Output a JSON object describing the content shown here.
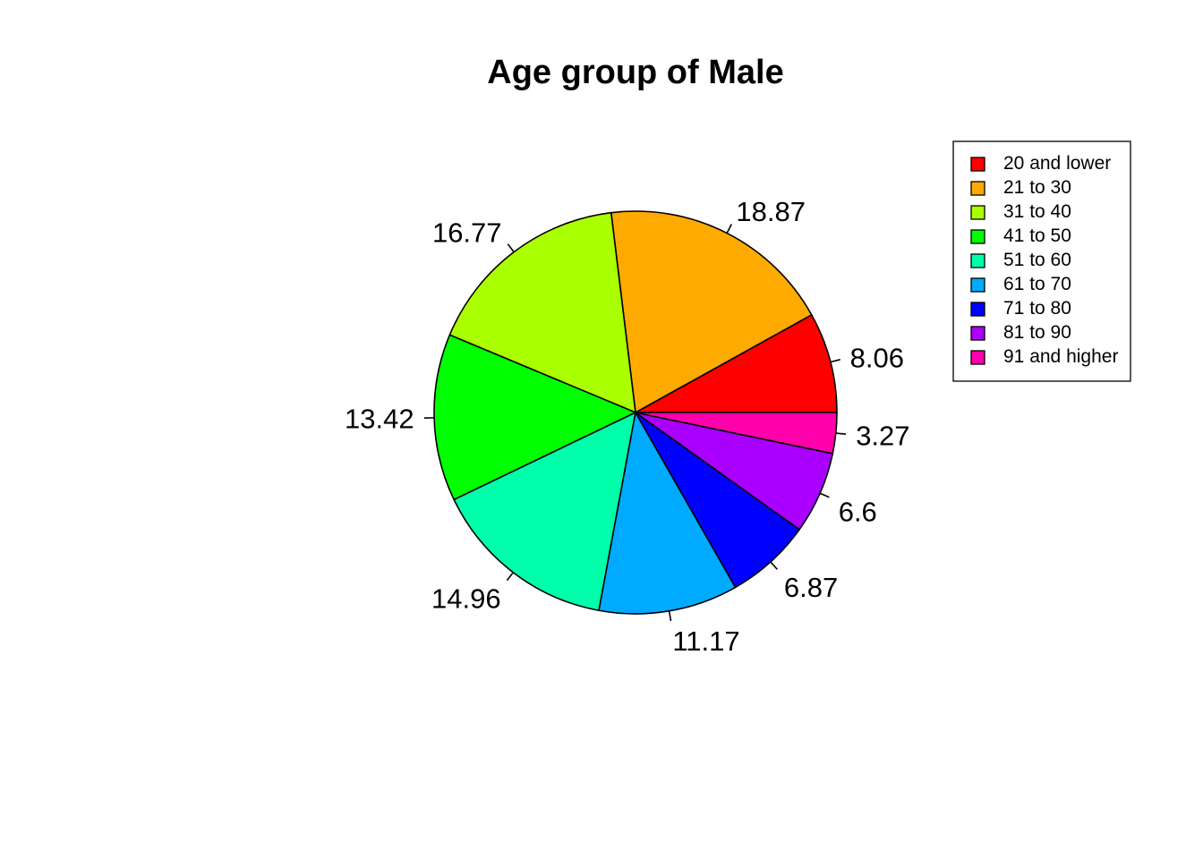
{
  "chart_data": {
    "type": "pie",
    "title": "Age group of Male",
    "categories": [
      "20 and lower",
      "21 to 30",
      "31 to 40",
      "41 to 50",
      "51 to 60",
      "61 to 70",
      "71 to 80",
      "81 to 90",
      "91 and higher"
    ],
    "values": [
      8.06,
      18.87,
      16.77,
      13.42,
      14.96,
      11.17,
      6.87,
      6.6,
      3.27
    ],
    "labels": [
      "8.06",
      "18.87",
      "16.77",
      "13.42",
      "14.96",
      "11.17",
      "6.87",
      "6.6",
      "3.27"
    ],
    "colors": [
      "#FF0000",
      "#FFAA00",
      "#AAFF00",
      "#00FF00",
      "#00FFAA",
      "#00AAFF",
      "#0000FF",
      "#AA00FF",
      "#FF00AA"
    ],
    "direction": "counterclockwise",
    "start": "3 o'clock",
    "legend": {
      "position": "top-right",
      "entries": [
        "20 and lower",
        "21 to 30",
        "31 to 40",
        "41 to 50",
        "51 to 60",
        "61 to 70",
        "71 to 80",
        "81 to 90",
        "91 and higher"
      ]
    }
  }
}
